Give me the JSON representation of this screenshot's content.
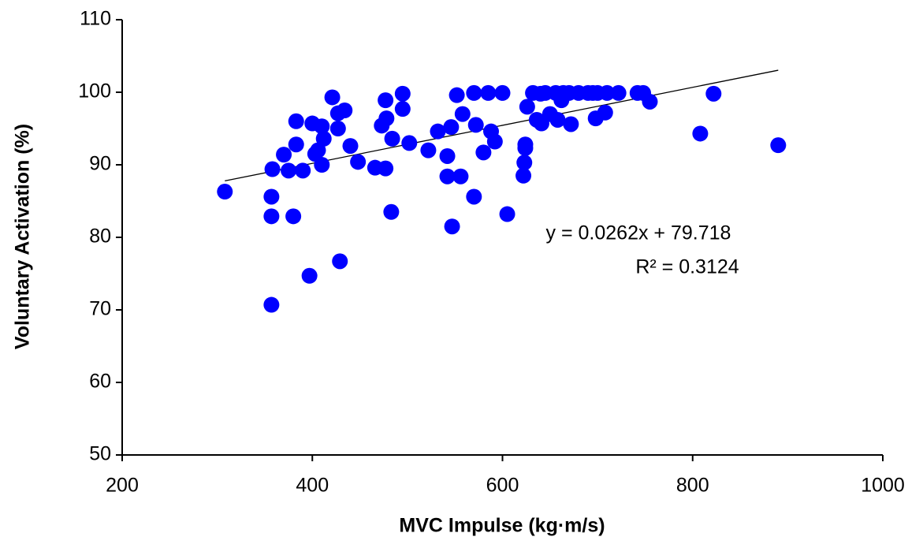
{
  "chart_data": {
    "type": "scatter",
    "x_label": "MVC Impulse (kg·m/s)",
    "y_label": "Voluntary Activation (%)",
    "series": [
      {
        "color": "#0000ff",
        "x": [
          308,
          357,
          357,
          357,
          380,
          358,
          370,
          375,
          383,
          383,
          390,
          397,
          400,
          403,
          406,
          410,
          412,
          410,
          421,
          427,
          427,
          429,
          434,
          440,
          448,
          466,
          473,
          477,
          477,
          478,
          483,
          484,
          495,
          495,
          502,
          522,
          532,
          542,
          542,
          546,
          547,
          552,
          556,
          558,
          570,
          570,
          572,
          580,
          585,
          588,
          592,
          600,
          605,
          622,
          623,
          624,
          624,
          626,
          632,
          636,
          640,
          641,
          645,
          650,
          656,
          658,
          662,
          664,
          670,
          672,
          680,
          690,
          695,
          698,
          700,
          708,
          710,
          722,
          742,
          748,
          755,
          808,
          822,
          890
        ],
        "values": [
          86.3,
          70.7,
          85.6,
          82.9,
          82.9,
          89.4,
          91.4,
          89.2,
          92.8,
          96,
          89.2,
          74.7,
          95.7,
          91.5,
          92,
          95.3,
          93.6,
          90,
          99.3,
          95,
          97.1,
          76.7,
          97.5,
          92.6,
          90.4,
          89.6,
          95.4,
          89.5,
          98.9,
          96.4,
          83.5,
          93.6,
          99.8,
          97.7,
          93,
          92,
          94.6,
          88.4,
          91.2,
          95.2,
          81.5,
          99.6,
          88.4,
          97,
          99.9,
          85.6,
          95.5,
          91.7,
          99.9,
          94.6,
          93.2,
          99.9,
          83.2,
          88.5,
          90.3,
          92.3,
          92.8,
          98,
          99.9,
          96.2,
          99.8,
          95.7,
          99.9,
          97,
          99.9,
          96.2,
          98.9,
          99.9,
          99.9,
          95.6,
          99.9,
          99.9,
          99.9,
          96.4,
          99.9,
          97.2,
          99.9,
          99.9,
          99.9,
          99.9,
          98.7,
          94.3,
          99.8,
          92.7
        ]
      }
    ],
    "trendline": {
      "slope": 0.0262,
      "intercept": 79.718,
      "equation": "y = 0.0262x + 79.718",
      "r2": "R² = 0.3124",
      "color": "#000000"
    },
    "xlim": [
      200,
      1000
    ],
    "xticks": [
      200,
      400,
      600,
      800,
      1000
    ],
    "ylim": [
      50,
      110
    ],
    "yticks": [
      50,
      60,
      70,
      80,
      90,
      100,
      110
    ]
  }
}
